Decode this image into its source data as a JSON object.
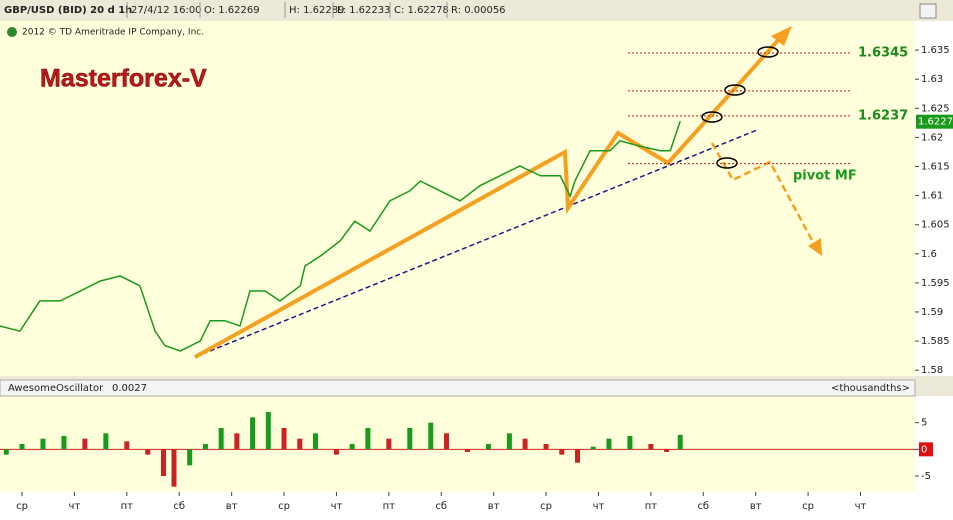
{
  "header": {
    "items": [
      "GBP/USD (BID) 20 d 1h",
      "27/4/12 16:00",
      "O: 1.62269",
      "H: 1.62289",
      "L: 1.62233",
      "C: 1.62278",
      "R: 0.00056"
    ],
    "copyright": "2012 © TD Ameritrade IP Company, Inc."
  },
  "chart_data": [
    {
      "type": "line",
      "watermark": "Masterforex-V",
      "color": "#1a9a1a",
      "x": [
        -0.42,
        -0.04,
        0.34,
        0.73,
        1.11,
        1.49,
        1.87,
        2.25,
        2.54,
        2.73,
        3.02,
        3.4,
        3.59,
        3.87,
        4.16,
        4.35,
        4.64,
        4.92,
        5.31,
        5.4,
        5.69,
        6.07,
        6.35,
        6.64,
        7.02,
        7.4,
        7.6,
        7.98,
        8.36,
        8.74,
        9.12,
        9.5,
        9.89,
        10.27,
        10.46,
        10.55,
        10.84,
        11.22,
        11.41,
        11.79,
        12.18,
        12.37,
        12.56
      ],
      "values": [
        1.5876,
        1.5867,
        1.5919,
        1.5919,
        1.5936,
        1.5953,
        1.5962,
        1.5945,
        1.5867,
        1.5842,
        1.5833,
        1.585,
        1.5885,
        1.5885,
        1.5876,
        1.5936,
        1.5936,
        1.5919,
        1.5945,
        1.5979,
        1.5996,
        1.6022,
        1.6056,
        1.6039,
        1.6091,
        1.6108,
        1.6125,
        1.6108,
        1.6091,
        1.6117,
        1.6134,
        1.6151,
        1.6134,
        1.6134,
        1.6099,
        1.6125,
        1.6177,
        1.6177,
        1.6194,
        1.6185,
        1.6177,
        1.6177,
        1.6228
      ],
      "last_value": 1.6227,
      "xlim": [
        -0.42,
        17.04
      ],
      "ylim": [
        1.579,
        1.64
      ],
      "yticks": [
        1.58,
        1.585,
        1.59,
        1.595,
        1.6,
        1.605,
        1.61,
        1.615,
        1.62,
        1.625,
        1.63,
        1.635
      ],
      "levels": [
        {
          "value": 1.6345,
          "label": "1.6345"
        },
        1.628,
        {
          "value": 1.6237,
          "label": "1.6237"
        },
        1.6155
      ],
      "annotation": "pivot MF"
    },
    {
      "type": "bar",
      "title": "AwesomeOscillator",
      "current": 0.0027,
      "units": "<thousandths>",
      "up_color": "#1a9a1a",
      "down_color": "#cc2222",
      "x": [
        -0.3,
        0,
        0.4,
        0.8,
        1.2,
        1.6,
        2.0,
        2.4,
        2.7,
        2.9,
        3.2,
        3.5,
        3.8,
        4.1,
        4.4,
        4.7,
        5.0,
        5.3,
        5.6,
        6.0,
        6.3,
        6.6,
        7.0,
        7.4,
        7.8,
        8.1,
        8.5,
        8.9,
        9.3,
        9.6,
        10.0,
        10.3,
        10.6,
        10.9,
        11.2,
        11.6,
        12.0,
        12.3,
        12.56
      ],
      "values": [
        -1,
        1,
        2,
        2.5,
        2,
        3,
        1.5,
        -1,
        -5,
        -7,
        -3,
        1,
        4,
        3,
        6,
        7,
        4,
        2,
        3,
        -1,
        1,
        4,
        2,
        4,
        5,
        3,
        -0.5,
        1,
        3,
        2,
        1,
        -1,
        -2.5,
        0.5,
        2,
        2.5,
        1,
        -0.5,
        2.7
      ],
      "xlim": [
        -0.42,
        17.04
      ],
      "ylim": [
        -8,
        10
      ],
      "yticks": [
        -5,
        0,
        5
      ],
      "xticks": [
        {
          "value": 0,
          "label": "ср"
        },
        {
          "value": 1,
          "label": "чт"
        },
        {
          "value": 2,
          "label": "пт"
        },
        {
          "value": 3,
          "label": "сб"
        },
        {
          "value": 4,
          "label": "вт"
        },
        {
          "value": 5,
          "label": "ср"
        },
        {
          "value": 6,
          "label": "чт"
        },
        {
          "value": 7,
          "label": "пт"
        },
        {
          "value": 8,
          "label": "сб"
        },
        {
          "value": 9,
          "label": "вт"
        },
        {
          "value": 10,
          "label": "ср"
        },
        {
          "value": 11,
          "label": "чт"
        },
        {
          "value": 12,
          "label": "пт"
        },
        {
          "value": 13,
          "label": "сб"
        },
        {
          "value": 14,
          "label": "вт"
        },
        {
          "value": 15,
          "label": "ср"
        },
        {
          "value": 16,
          "label": "чт"
        }
      ]
    }
  ]
}
